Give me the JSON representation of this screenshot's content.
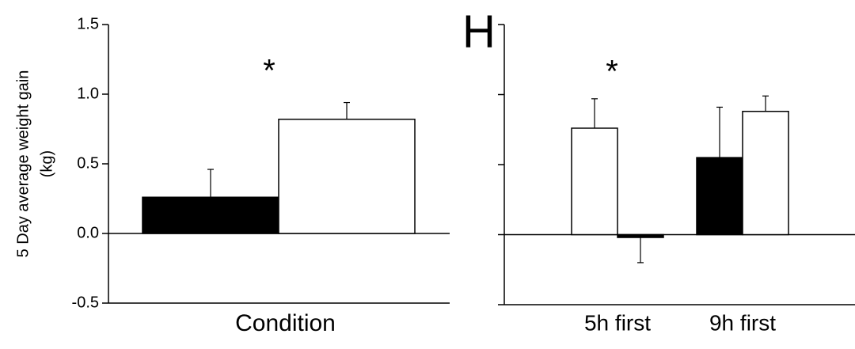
{
  "chart_data": [
    {
      "type": "bar",
      "ylabel": [
        "5 Day average weight gain",
        "(kg)"
      ],
      "xlabel": "Condition",
      "annotation": "*",
      "categories": [
        null
      ],
      "values": [
        [
          0.26,
          0.82
        ]
      ],
      "errors": [
        [
          0.2,
          0.12
        ]
      ],
      "colors": [
        [
          "#000000",
          "#ffffff"
        ]
      ],
      "ylim": [
        -0.5,
        1.5
      ],
      "yticks": [
        -0.5,
        {
          "value": 0,
          "label": "0.0"
        },
        0.5,
        {
          "value": 1,
          "label": "1.0"
        },
        1.5
      ]
    },
    {
      "type": "bar",
      "panel_label": "H",
      "annotation": "*",
      "categories": [
        "5h first",
        "9h first"
      ],
      "values": [
        [
          0.76,
          -0.02
        ],
        [
          0.55,
          0.88
        ]
      ],
      "errors": [
        [
          0.21,
          0.18
        ],
        [
          0.36,
          0.11
        ]
      ],
      "colors": [
        [
          "#ffffff",
          "#000000"
        ],
        [
          "#000000",
          "#ffffff"
        ]
      ],
      "ylim": [
        -0.5,
        1.5
      ],
      "yticks": [
        -0.5,
        0,
        0.5,
        1,
        1.5
      ]
    }
  ]
}
